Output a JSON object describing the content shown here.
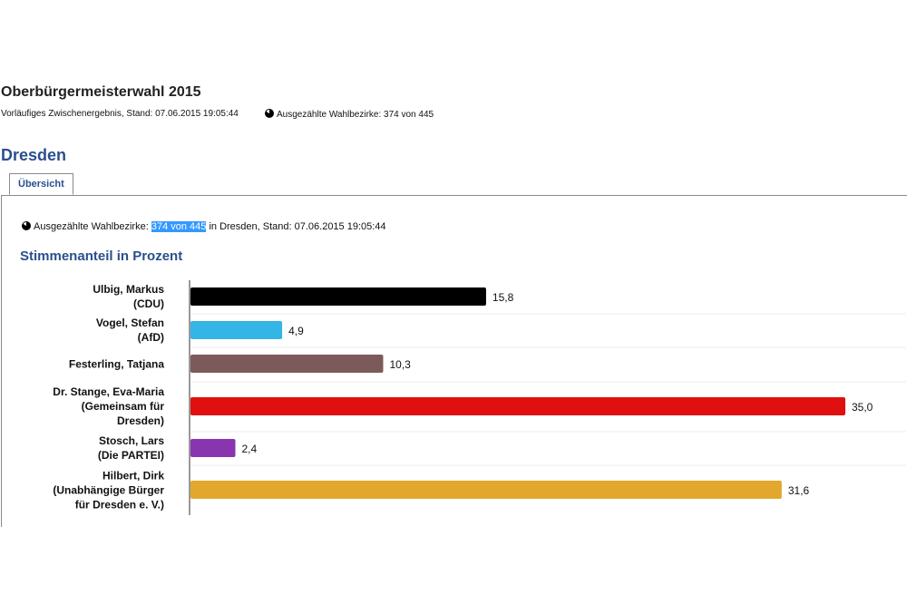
{
  "header": {
    "title": "Oberbürgermeisterwahl 2015",
    "subtitle": "Vorläufiges Zwischenergebnis, Stand: 07.06.2015 19:05:44",
    "counted": "Ausgezählte Wahlbezirke: 374 von 445"
  },
  "city": "Dresden",
  "tabs": [
    {
      "label": "Übersicht",
      "active": true
    }
  ],
  "panel": {
    "counted_prefix": "Ausgezählte Wahlbezirke: ",
    "counted_highlight": "374 von 445",
    "counted_suffix": " in Dresden, Stand: 07.06.2015 19:05:44",
    "section_title": "Stimmenanteil in Prozent"
  },
  "icons": {
    "counted": "pie-progress-icon"
  },
  "chart_data": {
    "type": "bar",
    "orientation": "horizontal",
    "title": "Stimmenanteil in Prozent",
    "categories": [
      [
        "Ulbig, Markus",
        "(CDU)"
      ],
      [
        "Vogel, Stefan",
        "(AfD)"
      ],
      [
        "Festerling, Tatjana"
      ],
      [
        "Dr. Stange, Eva-Maria",
        "(Gemeinsam für",
        "Dresden)"
      ],
      [
        "Stosch, Lars",
        "(Die PARTEI)"
      ],
      [
        "Hilbert, Dirk",
        "(Unabhängige Bürger",
        "für Dresden e. V.)"
      ]
    ],
    "values": [
      15.8,
      4.9,
      10.3,
      35.0,
      2.4,
      31.6
    ],
    "value_labels": [
      "15,8",
      "4,9",
      "10,3",
      "35,0",
      "2,4",
      "31,6"
    ],
    "colors": [
      "#000000",
      "#33b5e6",
      "#7d5a5a",
      "#e01010",
      "#8a35b0",
      "#e3a72d"
    ],
    "xlim": [
      0,
      35.0
    ],
    "grid": false
  }
}
